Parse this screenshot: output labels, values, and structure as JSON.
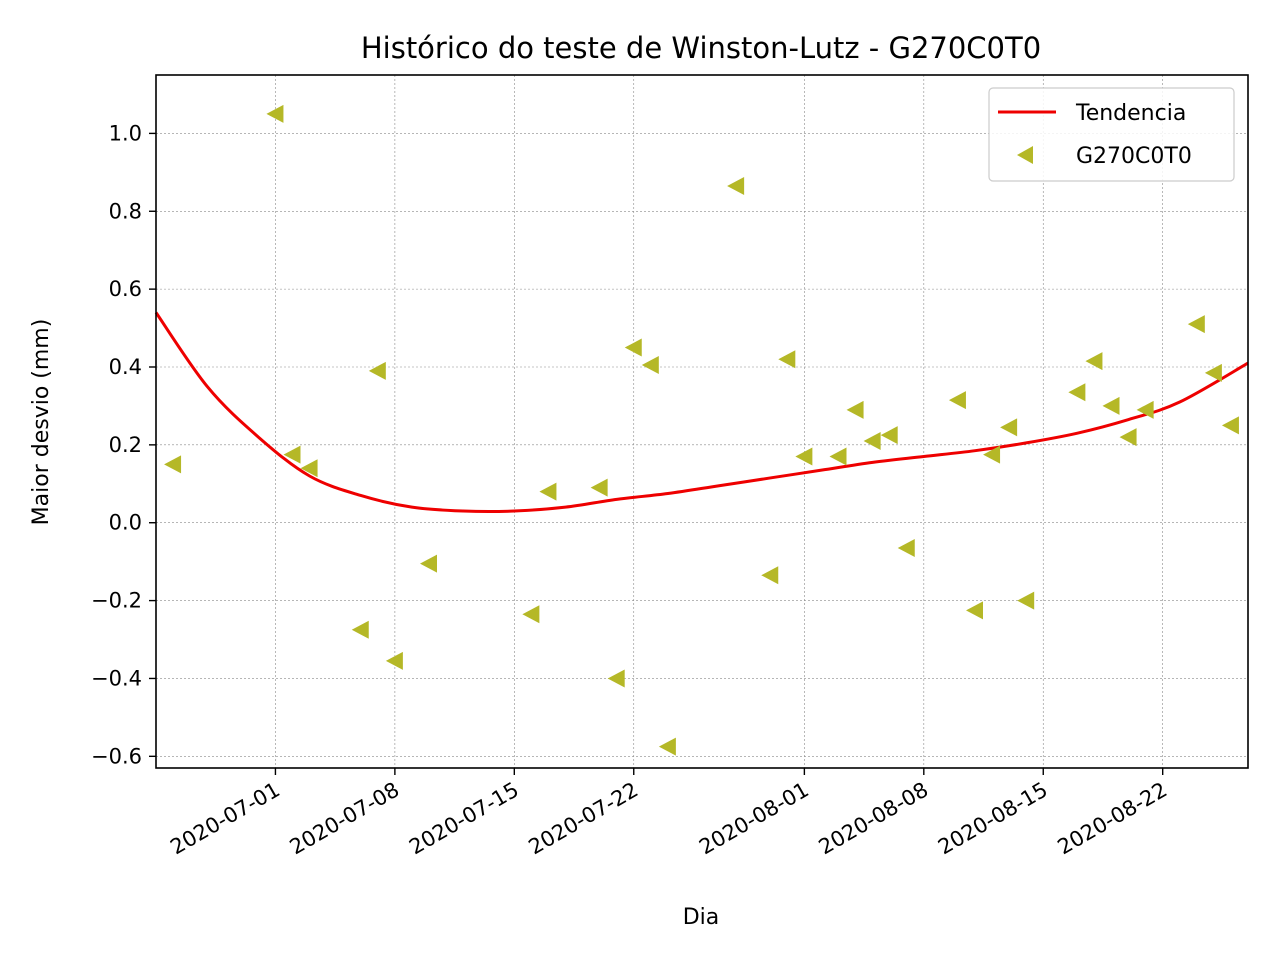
{
  "chart_data": {
    "type": "scatter",
    "title": "Histórico do teste de Winston-Lutz - G270C0T0",
    "xlabel": "Dia",
    "ylabel": "Maior desvio (mm)",
    "xlim": [
      "2020-06-24",
      "2020-08-27"
    ],
    "ylim": [
      -0.63,
      1.15
    ],
    "grid": true,
    "legend_position": "top-right",
    "x_ticks": [
      "2020-07-01",
      "2020-07-08",
      "2020-07-15",
      "2020-07-22",
      "2020-08-01",
      "2020-08-08",
      "2020-08-15",
      "2020-08-22"
    ],
    "y_ticks": [
      -0.6,
      -0.4,
      -0.2,
      0.0,
      0.2,
      0.4,
      0.6,
      0.8,
      1.0
    ],
    "y_tick_labels": [
      "−0.6",
      "−0.4",
      "−0.2",
      "0.0",
      "0.2",
      "0.4",
      "0.6",
      "0.8",
      "1.0"
    ],
    "series": [
      {
        "name": "Tendencia",
        "kind": "line",
        "color": "#ee0000",
        "points": [
          {
            "x": "2020-06-24",
            "y": 0.54
          },
          {
            "x": "2020-06-27",
            "y": 0.35
          },
          {
            "x": "2020-06-30",
            "y": 0.22
          },
          {
            "x": "2020-07-03",
            "y": 0.12
          },
          {
            "x": "2020-07-06",
            "y": 0.07
          },
          {
            "x": "2020-07-09",
            "y": 0.04
          },
          {
            "x": "2020-07-12",
            "y": 0.03
          },
          {
            "x": "2020-07-15",
            "y": 0.03
          },
          {
            "x": "2020-07-18",
            "y": 0.04
          },
          {
            "x": "2020-07-21",
            "y": 0.06
          },
          {
            "x": "2020-07-24",
            "y": 0.075
          },
          {
            "x": "2020-07-27",
            "y": 0.095
          },
          {
            "x": "2020-07-30",
            "y": 0.115
          },
          {
            "x": "2020-08-02",
            "y": 0.135
          },
          {
            "x": "2020-08-05",
            "y": 0.155
          },
          {
            "x": "2020-08-08",
            "y": 0.17
          },
          {
            "x": "2020-08-11",
            "y": 0.185
          },
          {
            "x": "2020-08-14",
            "y": 0.205
          },
          {
            "x": "2020-08-17",
            "y": 0.23
          },
          {
            "x": "2020-08-20",
            "y": 0.265
          },
          {
            "x": "2020-08-23",
            "y": 0.31
          },
          {
            "x": "2020-08-27",
            "y": 0.41
          }
        ]
      },
      {
        "name": "G270C0T0",
        "kind": "scatter",
        "marker": "triangle-left",
        "color": "#b5b827",
        "points": [
          {
            "x": "2020-06-25",
            "y": 0.15
          },
          {
            "x": "2020-07-01",
            "y": 1.05
          },
          {
            "x": "2020-07-02",
            "y": 0.175
          },
          {
            "x": "2020-07-03",
            "y": 0.14
          },
          {
            "x": "2020-07-06",
            "y": -0.275
          },
          {
            "x": "2020-07-07",
            "y": 0.39
          },
          {
            "x": "2020-07-08",
            "y": -0.355
          },
          {
            "x": "2020-07-10",
            "y": -0.105
          },
          {
            "x": "2020-07-16",
            "y": -0.235
          },
          {
            "x": "2020-07-17",
            "y": 0.08
          },
          {
            "x": "2020-07-20",
            "y": 0.09
          },
          {
            "x": "2020-07-21",
            "y": -0.4
          },
          {
            "x": "2020-07-22",
            "y": 0.45
          },
          {
            "x": "2020-07-23",
            "y": 0.405
          },
          {
            "x": "2020-07-24",
            "y": -0.575
          },
          {
            "x": "2020-07-28",
            "y": 0.865
          },
          {
            "x": "2020-07-30",
            "y": -0.135
          },
          {
            "x": "2020-07-31",
            "y": 0.42
          },
          {
            "x": "2020-08-01",
            "y": 0.17
          },
          {
            "x": "2020-08-03",
            "y": 0.17
          },
          {
            "x": "2020-08-04",
            "y": 0.29
          },
          {
            "x": "2020-08-05",
            "y": 0.21
          },
          {
            "x": "2020-08-06",
            "y": 0.225
          },
          {
            "x": "2020-08-07",
            "y": -0.065
          },
          {
            "x": "2020-08-10",
            "y": 0.315
          },
          {
            "x": "2020-08-11",
            "y": -0.225
          },
          {
            "x": "2020-08-12",
            "y": 0.175
          },
          {
            "x": "2020-08-13",
            "y": 0.245
          },
          {
            "x": "2020-08-14",
            "y": -0.2
          },
          {
            "x": "2020-08-17",
            "y": 0.335
          },
          {
            "x": "2020-08-18",
            "y": 0.415
          },
          {
            "x": "2020-08-19",
            "y": 0.3
          },
          {
            "x": "2020-08-20",
            "y": 0.22
          },
          {
            "x": "2020-08-21",
            "y": 0.29
          },
          {
            "x": "2020-08-24",
            "y": 0.51
          },
          {
            "x": "2020-08-25",
            "y": 0.385
          },
          {
            "x": "2020-08-26",
            "y": 0.25
          }
        ]
      }
    ]
  }
}
